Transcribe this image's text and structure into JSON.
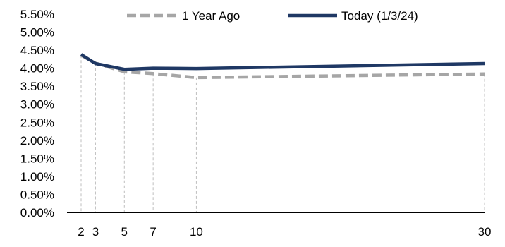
{
  "chart_data": {
    "type": "line",
    "title": "",
    "xlabel": "",
    "ylabel": "",
    "x_ticks": [
      2,
      3,
      5,
      7,
      10,
      30
    ],
    "xlim": [
      2,
      30
    ],
    "ylim": [
      0,
      5.5
    ],
    "y_ticks": [
      0.0,
      0.5,
      1.0,
      1.5,
      2.0,
      2.5,
      3.0,
      3.5,
      4.0,
      4.5,
      5.0,
      5.5
    ],
    "y_tick_labels": [
      "0.00%",
      "0.50%",
      "1.00%",
      "1.50%",
      "2.00%",
      "2.50%",
      "3.00%",
      "3.50%",
      "4.00%",
      "4.50%",
      "5.00%",
      "5.50%"
    ],
    "grid": "vertical dashed lines at x ticks",
    "legend_position": "top",
    "series": [
      {
        "name": "1 Year Ago",
        "style": "dashed",
        "color": "#a6a6a6",
        "x": [
          2,
          3,
          5,
          7,
          10,
          30
        ],
        "values": [
          4.36,
          4.14,
          3.9,
          3.85,
          3.74,
          3.84
        ]
      },
      {
        "name": "Today (1/3/24)",
        "style": "solid",
        "color": "#1f3864",
        "x": [
          2,
          3,
          5,
          7,
          10,
          30
        ],
        "values": [
          4.38,
          4.13,
          3.97,
          4.0,
          3.99,
          4.13
        ]
      }
    ]
  }
}
